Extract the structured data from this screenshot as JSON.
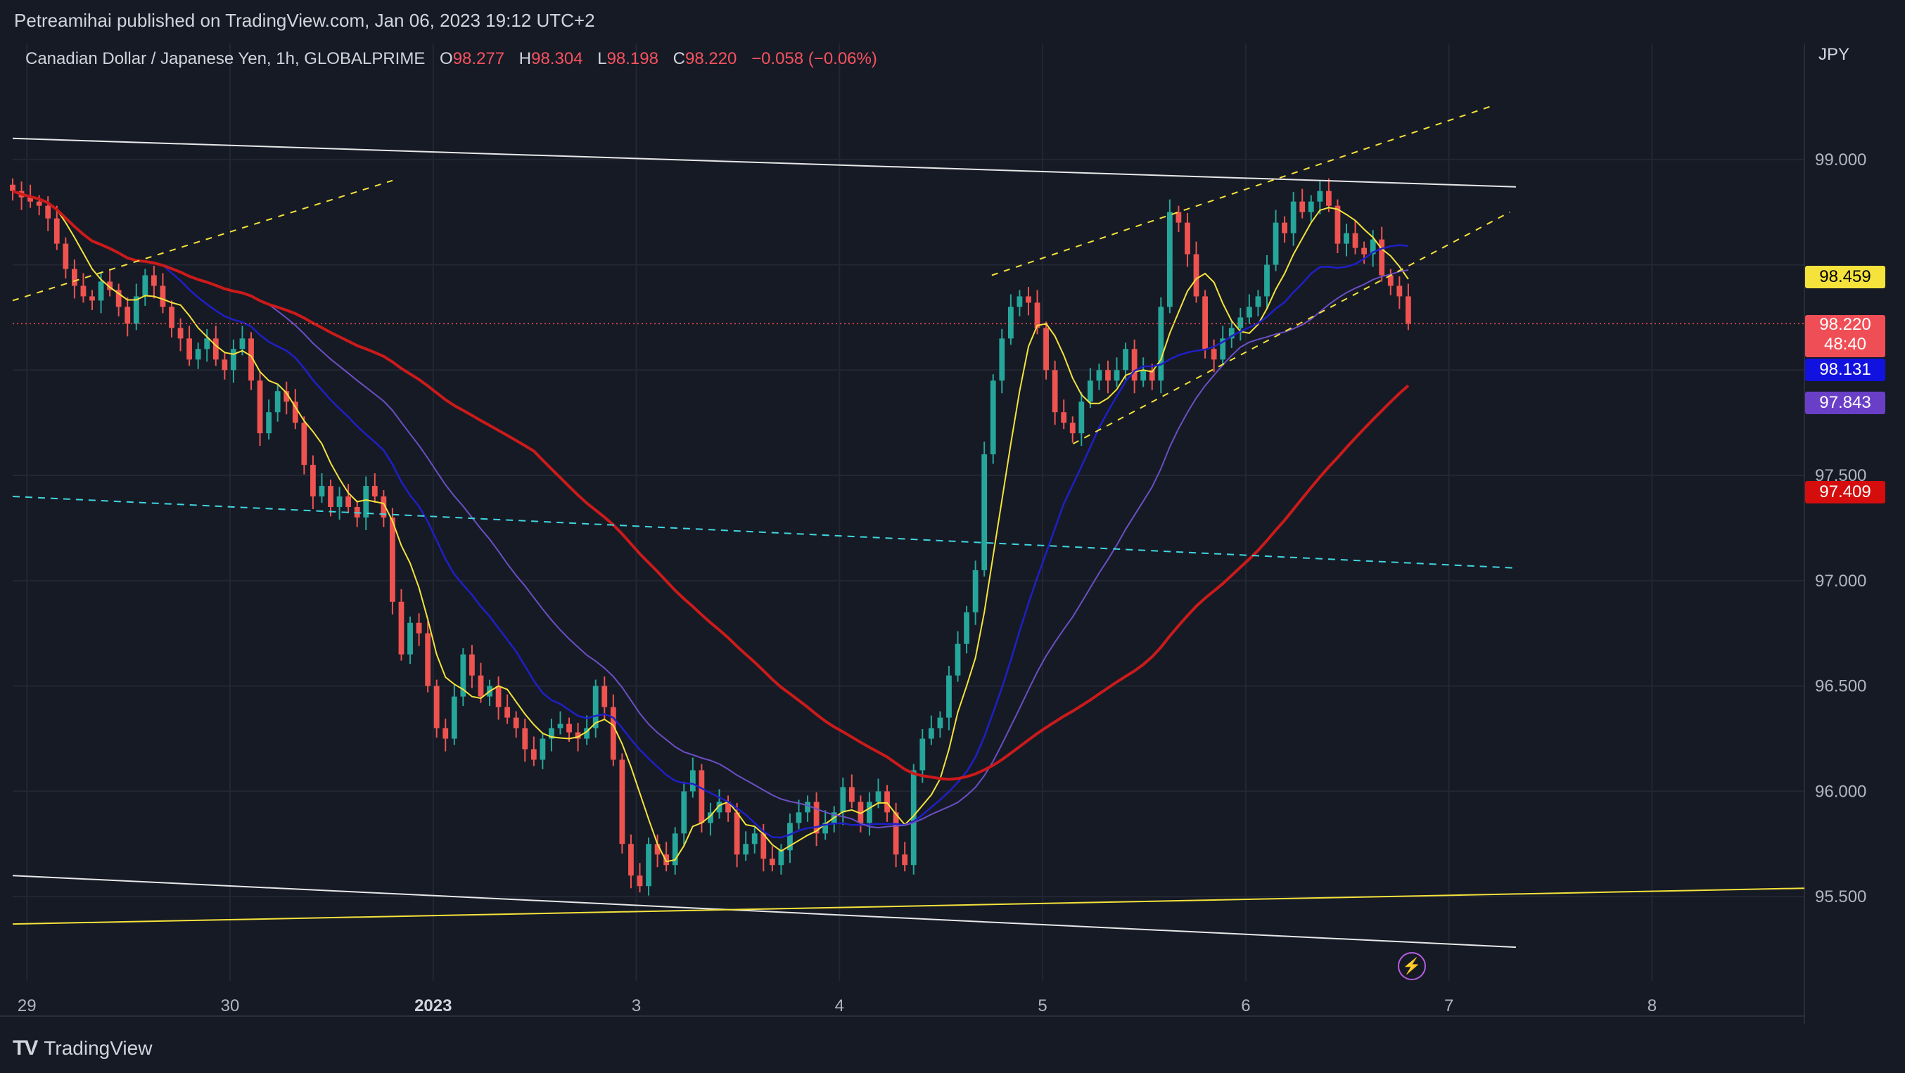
{
  "header": {
    "published": "Petreamihai published on TradingView.com, Jan 06, 2023 19:12 UTC+2"
  },
  "legend": {
    "symbol": "Canadian Dollar / Japanese Yen, 1h, GLOBALPRIME",
    "o_label": "O",
    "o_value": "98.277",
    "h_label": "H",
    "h_value": "98.304",
    "l_label": "L",
    "l_value": "98.198",
    "c_label": "C",
    "c_value": "98.220",
    "change": "−0.058 (−0.06%)"
  },
  "axis": {
    "currency": "JPY"
  },
  "badges": {
    "ma_yellow": "98.459",
    "price": "98.220",
    "countdown": "48:40",
    "ma_blue": "98.131",
    "ma_purple": "97.843",
    "ma_red": "97.409"
  },
  "footer": {
    "brand": "TradingView"
  },
  "colors": {
    "up": "#26a69a",
    "down": "#ef5350",
    "background": "#161a25",
    "ma_yellow": "#f5e33b",
    "ma_blue": "#1f1fc8",
    "ma_purple": "#6a4fc4",
    "ma_red": "#cc1a1a"
  },
  "chart_data": {
    "type": "candlestick",
    "ylim": [
      95.1,
      99.55
    ],
    "y_ticks": [
      "99.000",
      "97.500",
      "97.000",
      "96.500",
      "96.000",
      "95.500"
    ],
    "x_ticks": [
      "29",
      "30",
      "2023",
      "3",
      "4",
      "5",
      "6",
      "7",
      "8"
    ],
    "xlim_days": [
      -0.07,
      8.75
    ],
    "last_price": 98.22,
    "closes": [
      98.85,
      98.82,
      98.8,
      98.78,
      98.72,
      98.6,
      98.48,
      98.4,
      98.35,
      98.33,
      98.42,
      98.38,
      98.3,
      98.22,
      98.35,
      98.45,
      98.4,
      98.3,
      98.2,
      98.15,
      98.05,
      98.1,
      98.15,
      98.05,
      98.0,
      98.1,
      98.15,
      97.95,
      97.7,
      97.8,
      97.9,
      97.85,
      97.75,
      97.55,
      97.4,
      97.45,
      97.35,
      97.4,
      97.35,
      97.3,
      97.45,
      97.4,
      97.3,
      96.9,
      96.65,
      96.8,
      96.75,
      96.5,
      96.3,
      96.25,
      96.45,
      96.65,
      96.55,
      96.45,
      96.5,
      96.4,
      96.35,
      96.3,
      96.2,
      96.15,
      96.25,
      96.3,
      96.32,
      96.28,
      96.25,
      96.3,
      96.5,
      96.4,
      96.15,
      95.75,
      95.6,
      95.55,
      95.75,
      95.7,
      95.65,
      95.8,
      96.0,
      96.1,
      95.85,
      95.9,
      95.95,
      95.9,
      95.7,
      95.75,
      95.8,
      95.68,
      95.65,
      95.72,
      95.85,
      95.9,
      95.95,
      95.8,
      95.85,
      95.9,
      96.02,
      95.95,
      95.85,
      95.95,
      96.0,
      95.9,
      95.7,
      95.65,
      96.1,
      96.25,
      96.3,
      96.35,
      96.55,
      96.7,
      96.85,
      97.05,
      97.6,
      97.95,
      98.15,
      98.3,
      98.35,
      98.32,
      98.2,
      98.0,
      97.8,
      97.75,
      97.7,
      97.85,
      97.95,
      98.0,
      97.95,
      98.0,
      98.1,
      97.95,
      98.0,
      97.95,
      98.3,
      98.75,
      98.7,
      98.55,
      98.35,
      98.1,
      98.05,
      98.15,
      98.2,
      98.25,
      98.3,
      98.35,
      98.5,
      98.7,
      98.65,
      98.8,
      98.75,
      98.8,
      98.85,
      98.78,
      98.6,
      98.65,
      98.58,
      98.55,
      98.62,
      98.45,
      98.4,
      98.35,
      98.22
    ],
    "channel_lines": {
      "upper_white": [
        [
          -0.07,
          99.1
        ],
        [
          7.33,
          98.87
        ]
      ],
      "lower_white": [
        [
          -0.07,
          95.6
        ],
        [
          7.33,
          95.26
        ]
      ],
      "yellow_support": [
        [
          -0.07,
          95.37
        ],
        [
          8.75,
          95.54
        ]
      ],
      "cyan_dashed": [
        [
          -0.07,
          97.4
        ],
        [
          7.33,
          97.06
        ]
      ],
      "yellow_dash_1": [
        [
          -0.07,
          98.33
        ],
        [
          1.8,
          98.9
        ]
      ],
      "yellow_dash_2": [
        [
          4.75,
          98.45
        ],
        [
          7.2,
          99.25
        ]
      ],
      "yellow_dash_3": [
        [
          5.15,
          97.65
        ],
        [
          7.3,
          98.75
        ]
      ]
    }
  }
}
